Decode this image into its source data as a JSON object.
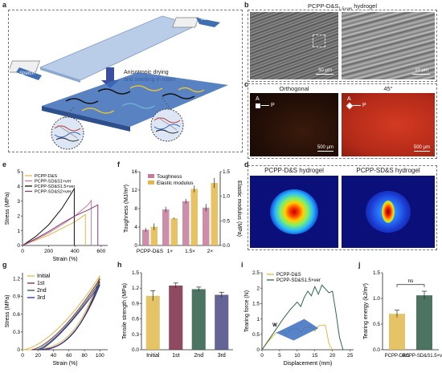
{
  "panels": {
    "a": {
      "label": "a",
      "stretch_top": "Stretch",
      "stretch_left": "Stretch",
      "process": "Anisotropic drying\nand swelling in water"
    },
    "b": {
      "label": "b",
      "title": "PCPP-D&S",
      "title_sub": "1.5×ver",
      "title_suffix": " hydrogel",
      "scale_left": "50 μm",
      "scale_right": "10 μm"
    },
    "c": {
      "label": "c",
      "left_title": "Orthogonal",
      "right_title": "45°",
      "axis_a": "A",
      "axis_p": "P",
      "scale_left": "500 μm",
      "scale_right": "500 μm"
    },
    "d": {
      "label": "d",
      "left_title": "PCPP-D&S hydrogel",
      "right_title": "PCPP-SD&S hydrogel"
    },
    "e": {
      "label": "e"
    },
    "f": {
      "label": "f"
    },
    "g": {
      "label": "g"
    },
    "h": {
      "label": "h"
    },
    "i": {
      "label": "i",
      "inset_label": "W"
    },
    "j": {
      "label": "j"
    }
  },
  "colors": {
    "yellow": "#e3b84a",
    "purple": "#8a3a7a",
    "pink": "#c47a9a",
    "green": "#2f6a4a",
    "black": "#111111",
    "blue": "#2a2aa0",
    "violet": "#5b4a8a",
    "ochre": "#e0b84c",
    "maroon": "#7a2a44",
    "forest": "#2e5c46",
    "indigo": "#4a4a82",
    "red_pol": "#c0301e"
  },
  "chart_data": [
    {
      "id": "e",
      "type": "line",
      "xlabel": "Strain (%)",
      "ylabel": "Stress (MPa)",
      "xlim": [
        0,
        650
      ],
      "ylim": [
        0,
        5
      ],
      "xticks": [
        0,
        200,
        400,
        600
      ],
      "yticks": [
        0,
        1,
        2,
        3,
        4,
        5
      ],
      "legend": [
        "PCPP-D&S",
        "PCPP-SD&S1×ver",
        "PCPP-SD&S1.5×ver",
        "PCPP-SD&S2×ver"
      ],
      "series": [
        {
          "name": "PCPP-D&S",
          "x": [
            0,
            100,
            200,
            300,
            400,
            480,
            480
          ],
          "y": [
            0,
            0.35,
            0.7,
            1.15,
            1.6,
            2.1,
            0
          ]
        },
        {
          "name": "PCPP-SD&S1×ver",
          "x": [
            0,
            100,
            200,
            300,
            400,
            500,
            525,
            525
          ],
          "y": [
            0,
            0.4,
            0.85,
            1.4,
            2.0,
            2.75,
            3.05,
            0
          ]
        },
        {
          "name": "PCPP-SD&S1.5×ver",
          "x": [
            0,
            100,
            200,
            300,
            350,
            395,
            395
          ],
          "y": [
            0,
            0.6,
            1.4,
            2.5,
            3.2,
            3.85,
            0
          ]
        },
        {
          "name": "PCPP-SD&S2×ver",
          "x": [
            0,
            100,
            200,
            300,
            400,
            500,
            575,
            575
          ],
          "y": [
            0,
            0.45,
            0.95,
            1.5,
            2.0,
            2.4,
            2.75,
            0
          ]
        }
      ]
    },
    {
      "id": "f",
      "type": "bar",
      "categories": [
        "PCPP-D&S",
        "1×",
        "1.5×",
        "2×"
      ],
      "ylabel": "Toughness (MJ/m³)",
      "y2label": "Elastic modulus (MPa)",
      "ylim": [
        0,
        16
      ],
      "y2lim": [
        0,
        1.5
      ],
      "yticks": [
        0,
        4,
        8,
        12,
        16
      ],
      "y2ticks": [
        0,
        0.5,
        1.0,
        1.5
      ],
      "legend": [
        "Toughness",
        "Elastic modulus"
      ],
      "series": [
        {
          "name": "Toughness",
          "values": [
            3.4,
            7.8,
            9.6,
            8.2
          ],
          "errors": [
            0.4,
            0.6,
            0.5,
            0.8
          ]
        },
        {
          "name": "Elastic modulus",
          "values": [
            0.38,
            0.55,
            1.15,
            1.27
          ],
          "errors": [
            0.07,
            0.02,
            0.07,
            0.1
          ]
        }
      ]
    },
    {
      "id": "g",
      "type": "line",
      "xlabel": "Strain (%)",
      "ylabel": "Stress (MPa)",
      "xlim": [
        0,
        110
      ],
      "ylim": [
        0,
        1.3
      ],
      "xticks": [
        0,
        20,
        40,
        60,
        80,
        100
      ],
      "yticks": [
        0,
        0.3,
        0.6,
        0.9,
        1.2
      ],
      "legend": [
        "Initial",
        "1st",
        "2nd",
        "3rd"
      ]
    },
    {
      "id": "h",
      "type": "bar",
      "categories": [
        "Initial",
        "1st",
        "2nd",
        "3rd"
      ],
      "ylabel": "Tensile strength (MPa)",
      "ylim": [
        0,
        1.5
      ],
      "yticks": [
        0,
        0.3,
        0.6,
        0.9,
        1.2,
        1.5
      ],
      "values": [
        1.05,
        1.25,
        1.18,
        1.07
      ],
      "errors": [
        0.1,
        0.05,
        0.04,
        0.05
      ]
    },
    {
      "id": "i",
      "type": "line",
      "xlabel": "Displacement (mm)",
      "ylabel": "Tearing force (N)",
      "xlim": [
        0,
        26
      ],
      "ylim": [
        0,
        2.5
      ],
      "xticks": [
        0,
        5,
        10,
        15,
        20,
        25
      ],
      "yticks": [
        0,
        0.5,
        1.0,
        1.5,
        2.0,
        2.5
      ],
      "legend": [
        "PCPP-D&S",
        "PCPP-SD&S1.5×ver"
      ]
    },
    {
      "id": "j",
      "type": "bar",
      "categories": [
        "PCPP-D&S",
        "PCPP-SD&S1.5×ver"
      ],
      "ylabel": "Tearing energy (kJ/m²)",
      "ylim": [
        0,
        1.5
      ],
      "yticks": [
        0,
        0.5,
        1.0,
        1.5
      ],
      "values": [
        0.7,
        1.06
      ],
      "errors": [
        0.07,
        0.08
      ],
      "annotation": "ns"
    }
  ]
}
